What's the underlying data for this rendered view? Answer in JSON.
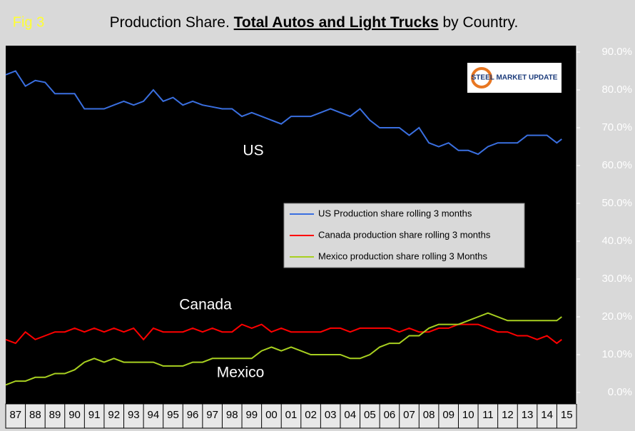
{
  "chart_data": {
    "type": "line",
    "title_parts": [
      "Production Share.",
      "Total Autos and Light Trucks",
      "by Country."
    ],
    "fig_label": "Fig 3",
    "logo": "STEEL MARKET UPDATE",
    "annotations": [
      "US",
      "Canada",
      "Mexico"
    ],
    "x": [
      1987,
      1987.5,
      1988,
      1988.5,
      1989,
      1989.5,
      1990,
      1990.5,
      1991,
      1991.5,
      1992,
      1992.5,
      1993,
      1993.5,
      1994,
      1994.5,
      1995,
      1995.5,
      1996,
      1996.5,
      1997,
      1997.5,
      1998,
      1998.5,
      1999,
      1999.5,
      2000,
      2000.5,
      2001,
      2001.5,
      2002,
      2002.5,
      2003,
      2003.5,
      2004,
      2004.5,
      2005,
      2005.5,
      2006,
      2006.5,
      2007,
      2007.5,
      2008,
      2008.5,
      2009,
      2009.5,
      2010,
      2010.5,
      2011,
      2011.5,
      2012,
      2012.5,
      2013,
      2013.5,
      2014,
      2014.5,
      2015,
      2015.25
    ],
    "xlim": [
      1987,
      2016
    ],
    "xticks": [
      {
        "value": 1987.5,
        "label": "87"
      },
      {
        "value": 1988.5,
        "label": "88"
      },
      {
        "value": 1989.5,
        "label": "89"
      },
      {
        "value": 1990.5,
        "label": "90"
      },
      {
        "value": 1991.5,
        "label": "91"
      },
      {
        "value": 1992.5,
        "label": "92"
      },
      {
        "value": 1993.5,
        "label": "93"
      },
      {
        "value": 1994.5,
        "label": "94"
      },
      {
        "value": 1995.5,
        "label": "95"
      },
      {
        "value": 1996.5,
        "label": "96"
      },
      {
        "value": 1997.5,
        "label": "97"
      },
      {
        "value": 1998.5,
        "label": "98"
      },
      {
        "value": 1999.5,
        "label": "99"
      },
      {
        "value": 2000.5,
        "label": "00"
      },
      {
        "value": 2001.5,
        "label": "01"
      },
      {
        "value": 2002.5,
        "label": "02"
      },
      {
        "value": 2003.5,
        "label": "03"
      },
      {
        "value": 2004.5,
        "label": "04"
      },
      {
        "value": 2005.5,
        "label": "05"
      },
      {
        "value": 2006.5,
        "label": "06"
      },
      {
        "value": 2007.5,
        "label": "07"
      },
      {
        "value": 2008.5,
        "label": "08"
      },
      {
        "value": 2009.5,
        "label": "09"
      },
      {
        "value": 2010.5,
        "label": "10"
      },
      {
        "value": 2011.5,
        "label": "11"
      },
      {
        "value": 2012.5,
        "label": "12"
      },
      {
        "value": 2013.5,
        "label": "13"
      },
      {
        "value": 2014.5,
        "label": "14"
      },
      {
        "value": 2015.5,
        "label": "15"
      }
    ],
    "ylim": [
      0,
      90
    ],
    "yticks": [
      {
        "value": 0,
        "label": "0.0%"
      },
      {
        "value": 10,
        "label": "10.0%"
      },
      {
        "value": 20,
        "label": "20.0%"
      },
      {
        "value": 30,
        "label": "30.0%"
      },
      {
        "value": 40,
        "label": "40.0%"
      },
      {
        "value": 50,
        "label": "50.0%"
      },
      {
        "value": 60,
        "label": "60.0%"
      },
      {
        "value": 70,
        "label": "70.0%"
      },
      {
        "value": 80,
        "label": "80.0%"
      },
      {
        "value": 90,
        "label": "90.0%"
      }
    ],
    "series": [
      {
        "name": "US Production share rolling 3 months",
        "color": "#3a6fe0",
        "values": [
          84,
          85,
          81,
          82.5,
          82,
          79,
          79,
          79,
          75,
          75,
          75,
          76,
          77,
          76,
          77,
          80,
          77,
          78,
          76,
          77,
          76,
          75.5,
          75,
          75,
          73,
          74,
          73,
          72,
          71,
          73,
          73,
          73,
          74,
          75,
          74,
          73,
          75,
          72,
          70,
          70,
          70,
          68,
          70,
          66,
          65,
          66,
          64,
          64,
          63,
          65,
          66,
          66,
          66,
          68,
          68,
          68,
          66,
          67
        ]
      },
      {
        "name": "Canada production share rolling 3 months",
        "color": "#ff0000",
        "values": [
          14,
          13,
          16,
          14,
          15,
          16,
          16,
          17,
          16,
          17,
          16,
          17,
          16,
          17,
          14,
          17,
          16,
          16,
          16,
          17,
          16,
          17,
          16,
          16,
          18,
          17,
          18,
          16,
          17,
          16,
          16,
          16,
          16,
          17,
          17,
          16,
          17,
          17,
          17,
          17,
          16,
          17,
          16,
          16,
          17,
          17,
          18,
          18,
          18,
          17,
          16,
          16,
          15,
          15,
          14,
          15,
          13,
          14
        ]
      },
      {
        "name": "Mexico production share rolling 3 Months",
        "color": "#a8d020",
        "values": [
          2,
          3,
          3,
          4,
          4,
          5,
          5,
          6,
          8,
          9,
          8,
          9,
          8,
          8,
          8,
          8,
          7,
          7,
          7,
          8,
          8,
          9,
          9,
          9,
          9,
          9,
          11,
          12,
          11,
          12,
          11,
          10,
          10,
          10,
          10,
          9,
          9,
          10,
          12,
          13,
          13,
          15,
          15,
          17,
          18,
          18,
          18,
          19,
          20,
          21,
          20,
          19,
          19,
          19,
          19,
          19,
          19,
          20
        ]
      }
    ]
  }
}
